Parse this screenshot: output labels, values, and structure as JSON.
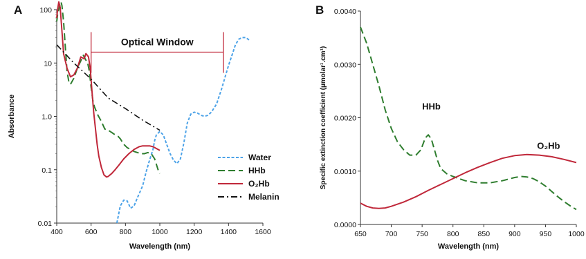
{
  "chart_data": [
    {
      "panel": "A",
      "type": "line",
      "xlabel": "Wavelength (nm)",
      "ylabel": "Absorbance",
      "xlim": [
        400,
        1600
      ],
      "ylim": [
        0.01,
        100
      ],
      "yscale": "log",
      "xticks": [
        "400",
        "600",
        "800",
        "1000",
        "1200",
        "1400",
        "1600"
      ],
      "yticks": [
        "0.01",
        "0.1",
        "1.0",
        "10",
        "100"
      ],
      "legend_position": "right",
      "annotation": {
        "label": "Optical Window",
        "x_start": 600,
        "x_end": 1370,
        "y": 16
      },
      "series": [
        {
          "name": "Water",
          "color": "#4da3e8",
          "dash": "short-dash",
          "points": [
            [
              750,
              0.01
            ],
            [
              770,
              0.021
            ],
            [
              790,
              0.027
            ],
            [
              810,
              0.026
            ],
            [
              830,
              0.019
            ],
            [
              850,
              0.021
            ],
            [
              870,
              0.03
            ],
            [
              900,
              0.05
            ],
            [
              920,
              0.09
            ],
            [
              940,
              0.15
            ],
            [
              960,
              0.24
            ],
            [
              970,
              0.35
            ],
            [
              980,
              0.45
            ],
            [
              1000,
              0.52
            ],
            [
              1020,
              0.45
            ],
            [
              1040,
              0.3
            ],
            [
              1060,
              0.2
            ],
            [
              1080,
              0.15
            ],
            [
              1100,
              0.13
            ],
            [
              1120,
              0.16
            ],
            [
              1140,
              0.32
            ],
            [
              1160,
              0.75
            ],
            [
              1180,
              1.1
            ],
            [
              1200,
              1.2
            ],
            [
              1220,
              1.15
            ],
            [
              1240,
              1.05
            ],
            [
              1260,
              1.0
            ],
            [
              1280,
              1.05
            ],
            [
              1300,
              1.2
            ],
            [
              1330,
              1.7
            ],
            [
              1360,
              3.3
            ],
            [
              1380,
              5.5
            ],
            [
              1400,
              9
            ],
            [
              1420,
              14
            ],
            [
              1440,
              22
            ],
            [
              1460,
              28
            ],
            [
              1480,
              30
            ],
            [
              1500,
              30
            ],
            [
              1520,
              27
            ]
          ]
        },
        {
          "name": "HHb",
          "color": "#2e7d2e",
          "dash": "long-dash",
          "points": [
            [
              400,
              60
            ],
            [
              405,
              80
            ],
            [
              410,
              95
            ],
            [
              420,
              130
            ],
            [
              425,
              140
            ],
            [
              430,
              120
            ],
            [
              440,
              60
            ],
            [
              450,
              20
            ],
            [
              460,
              7
            ],
            [
              470,
              4.5
            ],
            [
              480,
              4
            ],
            [
              500,
              5.2
            ],
            [
              520,
              8
            ],
            [
              540,
              11
            ],
            [
              555,
              14
            ],
            [
              565,
              12
            ],
            [
              580,
              10
            ],
            [
              590,
              7
            ],
            [
              600,
              3.5
            ],
            [
              610,
              2.0
            ],
            [
              620,
              1.5
            ],
            [
              640,
              1.05
            ],
            [
              660,
              0.8
            ],
            [
              680,
              0.58
            ],
            [
              700,
              0.55
            ],
            [
              720,
              0.5
            ],
            [
              740,
              0.45
            ],
            [
              758,
              0.42
            ],
            [
              770,
              0.38
            ],
            [
              790,
              0.3
            ],
            [
              810,
              0.26
            ],
            [
              830,
              0.24
            ],
            [
              850,
              0.22
            ],
            [
              870,
              0.21
            ],
            [
              890,
              0.2
            ],
            [
              910,
              0.2
            ],
            [
              930,
              0.21
            ],
            [
              950,
              0.2
            ],
            [
              970,
              0.16
            ],
            [
              990,
              0.1
            ],
            [
              1000,
              0.085
            ]
          ]
        },
        {
          "name": "O₂Hb",
          "color": "#c0283a",
          "dash": "solid",
          "points": [
            [
              400,
              70
            ],
            [
              405,
              100
            ],
            [
              412,
              140
            ],
            [
              420,
              110
            ],
            [
              430,
              40
            ],
            [
              440,
              15
            ],
            [
              460,
              8
            ],
            [
              480,
              5.5
            ],
            [
              500,
              6
            ],
            [
              520,
              8
            ],
            [
              540,
              13
            ],
            [
              560,
              12
            ],
            [
              570,
              15
            ],
            [
              578,
              14
            ],
            [
              585,
              13
            ],
            [
              595,
              8
            ],
            [
              605,
              3
            ],
            [
              615,
              1.2
            ],
            [
              625,
              0.6
            ],
            [
              635,
              0.3
            ],
            [
              645,
              0.18
            ],
            [
              660,
              0.11
            ],
            [
              675,
              0.08
            ],
            [
              690,
              0.073
            ],
            [
              700,
              0.075
            ],
            [
              720,
              0.085
            ],
            [
              740,
              0.1
            ],
            [
              760,
              0.12
            ],
            [
              790,
              0.16
            ],
            [
              820,
              0.2
            ],
            [
              850,
              0.24
            ],
            [
              880,
              0.27
            ],
            [
              900,
              0.28
            ],
            [
              920,
              0.28
            ],
            [
              940,
              0.28
            ],
            [
              960,
              0.27
            ],
            [
              980,
              0.25
            ],
            [
              1000,
              0.23
            ]
          ]
        },
        {
          "name": "Melanin",
          "color": "#111111",
          "dash": "dash-dot",
          "points": [
            [
              400,
              22
            ],
            [
              500,
              10
            ],
            [
              600,
              5
            ],
            [
              700,
              2.2
            ],
            [
              800,
              1.4
            ],
            [
              900,
              0.85
            ],
            [
              1000,
              0.55
            ]
          ]
        }
      ]
    },
    {
      "panel": "B",
      "type": "line",
      "xlabel": "Wavelength (nm)",
      "ylabel": "Specific extinction coefficient (µmolar¹.cm¹)",
      "xlim": [
        650,
        1000
      ],
      "ylim": [
        0,
        0.004
      ],
      "xticks": [
        "650",
        "700",
        "750",
        "800",
        "850",
        "900",
        "950",
        "1000"
      ],
      "yticks": [
        "0.0000",
        "0.0010",
        "0.0020",
        "0.0030",
        "0.0040"
      ],
      "series": [
        {
          "name": "HHb",
          "color": "#2e7d2e",
          "dash": "long-dash",
          "label_at": [
            765,
            0.00195
          ],
          "points": [
            [
              650,
              0.0037
            ],
            [
              660,
              0.0034
            ],
            [
              670,
              0.003
            ],
            [
              680,
              0.0026
            ],
            [
              690,
              0.00215
            ],
            [
              700,
              0.0018
            ],
            [
              710,
              0.00155
            ],
            [
              720,
              0.0014
            ],
            [
              730,
              0.0013
            ],
            [
              740,
              0.0013
            ],
            [
              748,
              0.0014
            ],
            [
              755,
              0.00162
            ],
            [
              760,
              0.00168
            ],
            [
              765,
              0.0016
            ],
            [
              770,
              0.0014
            ],
            [
              775,
              0.0012
            ],
            [
              780,
              0.00105
            ],
            [
              790,
              0.00095
            ],
            [
              800,
              0.0009
            ],
            [
              820,
              0.00082
            ],
            [
              840,
              0.00078
            ],
            [
              860,
              0.00078
            ],
            [
              880,
              0.00082
            ],
            [
              900,
              0.00088
            ],
            [
              910,
              0.0009
            ],
            [
              920,
              0.00089
            ],
            [
              930,
              0.00086
            ],
            [
              940,
              0.0008
            ],
            [
              950,
              0.00072
            ],
            [
              960,
              0.00062
            ],
            [
              970,
              0.00052
            ],
            [
              980,
              0.00043
            ],
            [
              990,
              0.00035
            ],
            [
              1000,
              0.00028
            ]
          ]
        },
        {
          "name": "O₂Hb",
          "color": "#c0283a",
          "dash": "solid",
          "label_at": [
            955,
            0.00155
          ],
          "points": [
            [
              650,
              0.0004
            ],
            [
              660,
              0.00034
            ],
            [
              670,
              0.00031
            ],
            [
              680,
              0.0003
            ],
            [
              690,
              0.00031
            ],
            [
              700,
              0.00034
            ],
            [
              720,
              0.00042
            ],
            [
              740,
              0.00052
            ],
            [
              760,
              0.00064
            ],
            [
              780,
              0.00075
            ],
            [
              800,
              0.00086
            ],
            [
              820,
              0.00097
            ],
            [
              840,
              0.00107
            ],
            [
              860,
              0.00116
            ],
            [
              880,
              0.00124
            ],
            [
              900,
              0.00129
            ],
            [
              920,
              0.00131
            ],
            [
              940,
              0.0013
            ],
            [
              960,
              0.00127
            ],
            [
              980,
              0.00122
            ],
            [
              1000,
              0.00116
            ]
          ]
        }
      ]
    }
  ],
  "labels": {
    "panel_a": "A",
    "panel_b": "B",
    "legend": [
      "Water",
      "HHb",
      "O₂Hb",
      "Melanin"
    ],
    "annotation_a": "Optical Window",
    "hhb_b": "HHb",
    "o2hb_b": "O₂Hb"
  }
}
